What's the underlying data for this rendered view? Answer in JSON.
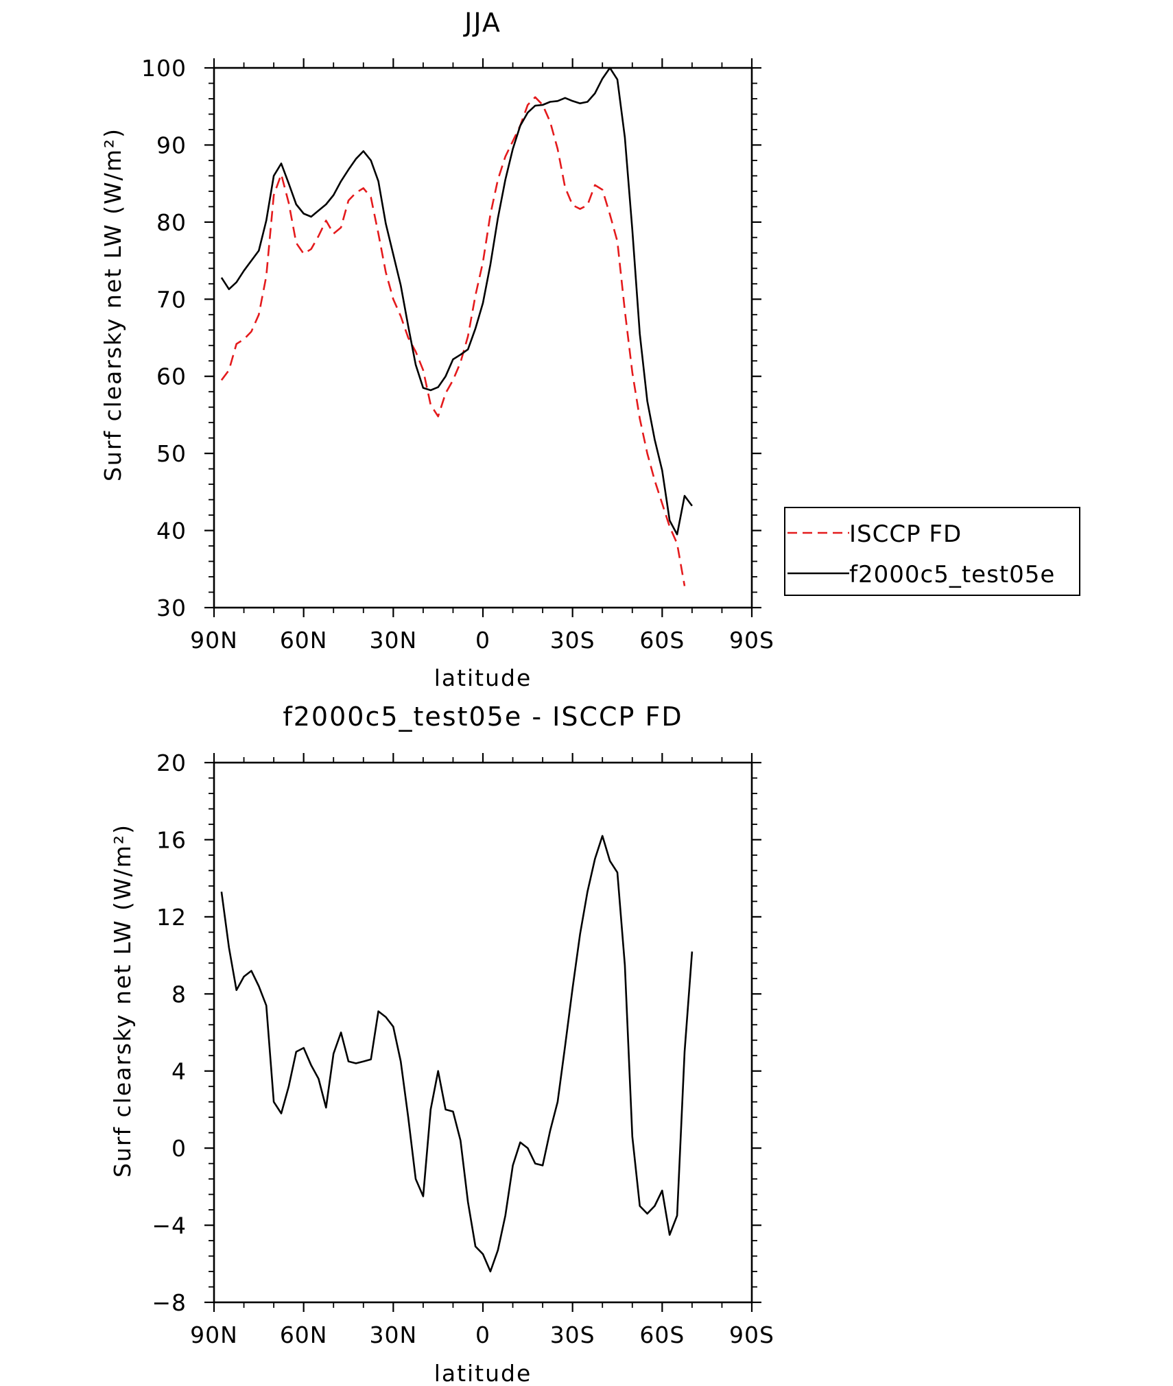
{
  "chart_data": [
    {
      "type": "line",
      "title": "JJA",
      "xlabel": "latitude",
      "ylabel": "Surf clearsky net LW (W/m²)",
      "xlim": [
        90,
        -90
      ],
      "ylim": [
        30,
        100
      ],
      "xticks": [
        90,
        60,
        30,
        0,
        -30,
        -60,
        -90
      ],
      "xtick_labels": [
        "90N",
        "60N",
        "30N",
        "0",
        "30S",
        "60S",
        "90S"
      ],
      "yticks": [
        30,
        40,
        50,
        60,
        70,
        80,
        90,
        100
      ],
      "ytick_labels": [
        "30",
        "40",
        "50",
        "60",
        "70",
        "80",
        "90",
        "100"
      ],
      "legend": {
        "placement": "right"
      },
      "series": [
        {
          "name": "ISCCP FD",
          "color": "#e41a1c",
          "dash": "dashed",
          "points": [
            [
              87.5,
              59.5
            ],
            [
              85,
              60.8
            ],
            [
              82.5,
              64.2
            ],
            [
              80,
              64.8
            ],
            [
              77.5,
              65.8
            ],
            [
              75,
              68
            ],
            [
              72.5,
              73
            ],
            [
              70,
              83.5
            ],
            [
              67.5,
              86.2
            ],
            [
              65,
              82.5
            ],
            [
              62.5,
              77.3
            ],
            [
              60,
              75.9
            ],
            [
              57.5,
              76.5
            ],
            [
              55,
              78.2
            ],
            [
              52.5,
              80.2
            ],
            [
              50,
              78.5
            ],
            [
              47.5,
              79.3
            ],
            [
              45,
              82.8
            ],
            [
              42.5,
              83.8
            ],
            [
              40,
              84.4
            ],
            [
              37.5,
              83.2
            ],
            [
              35,
              78.5
            ],
            [
              32.5,
              73.5
            ],
            [
              30,
              70
            ],
            [
              27.5,
              67.8
            ],
            [
              25,
              65
            ],
            [
              22.5,
              63.2
            ],
            [
              20,
              60.8
            ],
            [
              17.5,
              56.3
            ],
            [
              15,
              54.8
            ],
            [
              12.5,
              57.8
            ],
            [
              10,
              59.5
            ],
            [
              7.5,
              61.8
            ],
            [
              5,
              65.2
            ],
            [
              2.5,
              70.5
            ],
            [
              0,
              74.8
            ],
            [
              -2.5,
              81
            ],
            [
              -5,
              85.5
            ],
            [
              -7.5,
              88.5
            ],
            [
              -10,
              90.5
            ],
            [
              -12.5,
              92.5
            ],
            [
              -15,
              95.2
            ],
            [
              -17.5,
              96.2
            ],
            [
              -20,
              95.2
            ],
            [
              -22.5,
              93
            ],
            [
              -25,
              89.5
            ],
            [
              -27.5,
              84.5
            ],
            [
              -30,
              82.2
            ],
            [
              -32.5,
              81.7
            ],
            [
              -35,
              82.2
            ],
            [
              -37.5,
              84.8
            ],
            [
              -40,
              84.2
            ],
            [
              -42.5,
              81
            ],
            [
              -45,
              77.5
            ],
            [
              -47.5,
              68.5
            ],
            [
              -50,
              60.5
            ],
            [
              -52.5,
              54.5
            ],
            [
              -55,
              50
            ],
            [
              -57.5,
              46.5
            ],
            [
              -60,
              43.5
            ],
            [
              -62.5,
              40.5
            ],
            [
              -65,
              38.3
            ],
            [
              -67.5,
              32.8
            ]
          ]
        },
        {
          "name": "f2000c5_test05e",
          "color": "#000000",
          "dash": "solid",
          "points": [
            [
              87.5,
              72.8
            ],
            [
              85,
              71.3
            ],
            [
              82.5,
              72.2
            ],
            [
              80,
              73.7
            ],
            [
              77.5,
              75
            ],
            [
              75,
              76.3
            ],
            [
              72.5,
              80.2
            ],
            [
              70,
              86
            ],
            [
              67.5,
              87.6
            ],
            [
              65,
              85
            ],
            [
              62.5,
              82.3
            ],
            [
              60,
              81.1
            ],
            [
              57.5,
              80.7
            ],
            [
              55,
              81.5
            ],
            [
              52.5,
              82.3
            ],
            [
              50,
              83.5
            ],
            [
              47.5,
              85.3
            ],
            [
              45,
              86.8
            ],
            [
              42.5,
              88.2
            ],
            [
              40,
              89.2
            ],
            [
              37.5,
              88
            ],
            [
              35,
              85.3
            ],
            [
              32.5,
              79.8
            ],
            [
              30,
              75.8
            ],
            [
              27.5,
              71.8
            ],
            [
              25,
              66.5
            ],
            [
              22.5,
              61.5
            ],
            [
              20,
              58.5
            ],
            [
              17.5,
              58.2
            ],
            [
              15,
              58.6
            ],
            [
              12.5,
              60
            ],
            [
              10,
              62.2
            ],
            [
              7.5,
              62.8
            ],
            [
              5,
              63.5
            ],
            [
              2.5,
              66.2
            ],
            [
              0,
              69.5
            ],
            [
              -2.5,
              74.5
            ],
            [
              -5,
              80.5
            ],
            [
              -7.5,
              85.5
            ],
            [
              -10,
              89.5
            ],
            [
              -12.5,
              92.5
            ],
            [
              -15,
              94.2
            ],
            [
              -17.5,
              95.1
            ],
            [
              -20,
              95.2
            ],
            [
              -22.5,
              95.6
            ],
            [
              -25,
              95.7
            ],
            [
              -27.5,
              96.1
            ],
            [
              -30,
              95.7
            ],
            [
              -32.5,
              95.4
            ],
            [
              -35,
              95.6
            ],
            [
              -37.5,
              96.7
            ],
            [
              -40,
              98.6
            ],
            [
              -42.5,
              100
            ],
            [
              -45,
              98.5
            ],
            [
              -47.5,
              91
            ],
            [
              -50,
              79
            ],
            [
              -52.5,
              65.5
            ],
            [
              -55,
              56.8
            ],
            [
              -57.5,
              51.8
            ],
            [
              -60,
              47.8
            ],
            [
              -62.5,
              41.3
            ],
            [
              -65,
              39.5
            ],
            [
              -67.5,
              44.5
            ],
            [
              -70,
              43.2
            ]
          ]
        }
      ]
    },
    {
      "type": "line",
      "title": "f2000c5_test05e - ISCCP FD",
      "xlabel": "latitude",
      "ylabel": "Surf clearsky net LW (W/m²)",
      "xlim": [
        90,
        -90
      ],
      "ylim": [
        -8,
        20
      ],
      "xticks": [
        90,
        60,
        30,
        0,
        -30,
        -60,
        -90
      ],
      "xtick_labels": [
        "90N",
        "60N",
        "30N",
        "0",
        "30S",
        "60S",
        "90S"
      ],
      "yticks": [
        -8,
        -4,
        0,
        4,
        8,
        12,
        16,
        20
      ],
      "ytick_labels": [
        "−8",
        "−4",
        "0",
        "4",
        "8",
        "12",
        "16",
        "20"
      ],
      "series": [
        {
          "color": "#000000",
          "dash": "solid",
          "points": [
            [
              87.5,
              13.3
            ],
            [
              85,
              10.4
            ],
            [
              82.5,
              8.2
            ],
            [
              80,
              8.9
            ],
            [
              77.5,
              9.2
            ],
            [
              75,
              8.4
            ],
            [
              72.5,
              7.4
            ],
            [
              70,
              2.4
            ],
            [
              67.5,
              1.8
            ],
            [
              65,
              3.2
            ],
            [
              62.5,
              5
            ],
            [
              60,
              5.2
            ],
            [
              57.5,
              4.3
            ],
            [
              55,
              3.6
            ],
            [
              52.5,
              2.1
            ],
            [
              50,
              4.9
            ],
            [
              47.5,
              6
            ],
            [
              45,
              4.5
            ],
            [
              42.5,
              4.4
            ],
            [
              40,
              4.5
            ],
            [
              37.5,
              4.6
            ],
            [
              35,
              7.1
            ],
            [
              32.5,
              6.8
            ],
            [
              30,
              6.3
            ],
            [
              27.5,
              4.5
            ],
            [
              25,
              1.6
            ],
            [
              22.5,
              -1.6
            ],
            [
              20,
              -2.5
            ],
            [
              17.5,
              2
            ],
            [
              15,
              4
            ],
            [
              12.5,
              2
            ],
            [
              10,
              1.9
            ],
            [
              7.5,
              0.4
            ],
            [
              5,
              -2.8
            ],
            [
              2.5,
              -5.1
            ],
            [
              0,
              -5.5
            ],
            [
              -2.5,
              -6.4
            ],
            [
              -5,
              -5.3
            ],
            [
              -7.5,
              -3.5
            ],
            [
              -10,
              -0.9
            ],
            [
              -12.5,
              0.3
            ],
            [
              -15,
              0
            ],
            [
              -17.5,
              -0.8
            ],
            [
              -20,
              -0.9
            ],
            [
              -22.5,
              0.9
            ],
            [
              -25,
              2.4
            ],
            [
              -27.5,
              5.3
            ],
            [
              -30,
              8.3
            ],
            [
              -32.5,
              11.1
            ],
            [
              -35,
              13.3
            ],
            [
              -37.5,
              15
            ],
            [
              -40,
              16.2
            ],
            [
              -42.5,
              14.9
            ],
            [
              -45,
              14.3
            ],
            [
              -47.5,
              9.5
            ],
            [
              -50,
              0.6
            ],
            [
              -52.5,
              -3
            ],
            [
              -55,
              -3.4
            ],
            [
              -57.5,
              -3
            ],
            [
              -60,
              -2.2
            ],
            [
              -62.5,
              -4.5
            ],
            [
              -65,
              -3.5
            ],
            [
              -67.5,
              5
            ],
            [
              -70,
              10.2
            ]
          ]
        }
      ]
    }
  ]
}
